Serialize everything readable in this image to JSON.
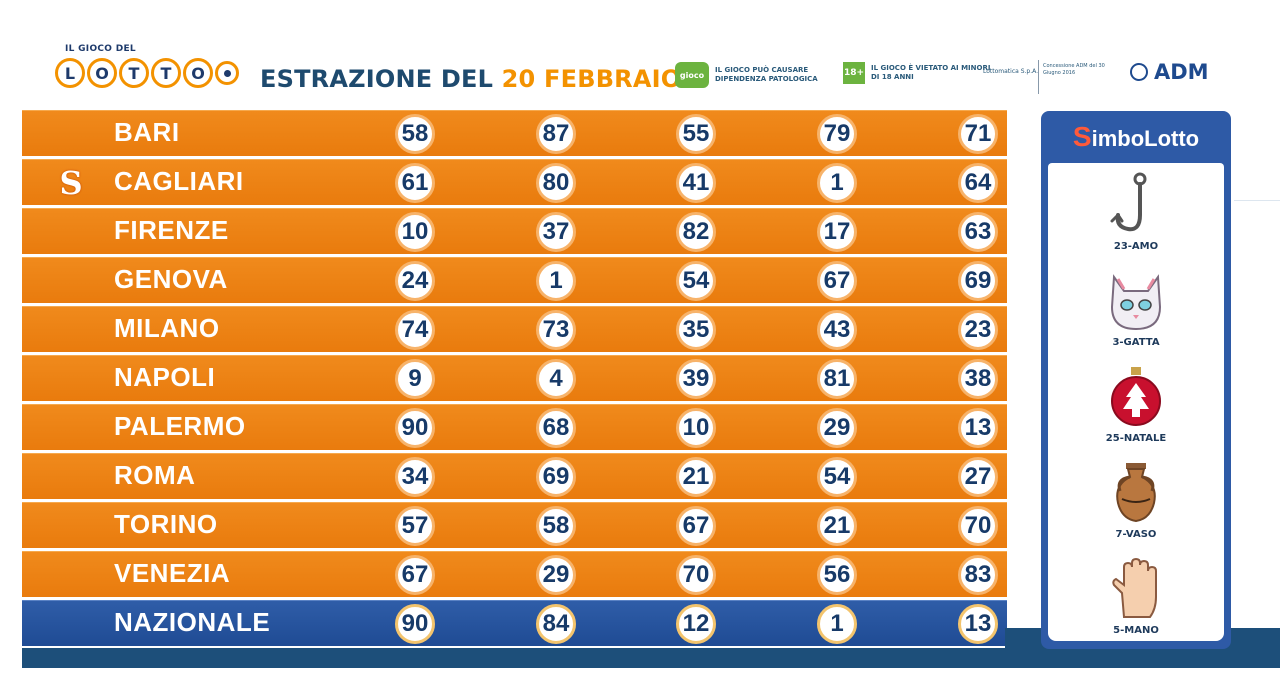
{
  "header": {
    "logo_top": "IL GIOCO DEL",
    "logo_letters": [
      "L",
      "O",
      "T",
      "T",
      "O"
    ],
    "title_prefix": "ESTRAZIONE DEL",
    "title_date": "20 FEBBRAIO",
    "warning_1_icon_text": "gioco",
    "warning_1": "IL GIOCO PUÒ CAUSARE DIPENDENZA PATOLOGICA",
    "warning_2_icon_text": "18+",
    "warning_2": "IL GIOCO È VIETATO AI MINORI DI 18 ANNI",
    "legal_1": "Lottomatica S.p.A.",
    "legal_2": "Concessione ADM del 30 Giugno 2016",
    "brand": "ADM"
  },
  "draws": [
    {
      "city": "BARI",
      "numbers": [
        "58",
        "87",
        "55",
        "79",
        "71"
      ],
      "symbol": ""
    },
    {
      "city": "CAGLIARI",
      "numbers": [
        "61",
        "80",
        "41",
        "1",
        "64"
      ],
      "symbol": "S"
    },
    {
      "city": "FIRENZE",
      "numbers": [
        "10",
        "37",
        "82",
        "17",
        "63"
      ],
      "symbol": ""
    },
    {
      "city": "GENOVA",
      "numbers": [
        "24",
        "1",
        "54",
        "67",
        "69"
      ],
      "symbol": ""
    },
    {
      "city": "MILANO",
      "numbers": [
        "74",
        "73",
        "35",
        "43",
        "23"
      ],
      "symbol": ""
    },
    {
      "city": "NAPOLI",
      "numbers": [
        "9",
        "4",
        "39",
        "81",
        "38"
      ],
      "symbol": ""
    },
    {
      "city": "PALERMO",
      "numbers": [
        "90",
        "68",
        "10",
        "29",
        "13"
      ],
      "symbol": ""
    },
    {
      "city": "ROMA",
      "numbers": [
        "34",
        "69",
        "21",
        "54",
        "27"
      ],
      "symbol": ""
    },
    {
      "city": "TORINO",
      "numbers": [
        "57",
        "58",
        "67",
        "21",
        "70"
      ],
      "symbol": ""
    },
    {
      "city": "VENEZIA",
      "numbers": [
        "67",
        "29",
        "70",
        "56",
        "83"
      ],
      "symbol": ""
    },
    {
      "city": "NAZIONALE",
      "numbers": [
        "90",
        "84",
        "12",
        "1",
        "13"
      ],
      "symbol": ""
    }
  ],
  "simbolotto": {
    "title_s": "S",
    "title_rest": "imboLotto",
    "items": [
      {
        "label": "23-AMO",
        "icon": "hook-icon"
      },
      {
        "label": "3-GATTA",
        "icon": "cat-icon"
      },
      {
        "label": "25-NATALE",
        "icon": "christmas-ornament-icon"
      },
      {
        "label": "7-VASO",
        "icon": "vase-icon"
      },
      {
        "label": "5-MANO",
        "icon": "hand-icon"
      }
    ]
  },
  "colors": {
    "orange_row": "#f08a1c",
    "blue_row": "#2f5da8",
    "title_blue": "#1e4a6e",
    "accent_orange": "#f39200"
  }
}
